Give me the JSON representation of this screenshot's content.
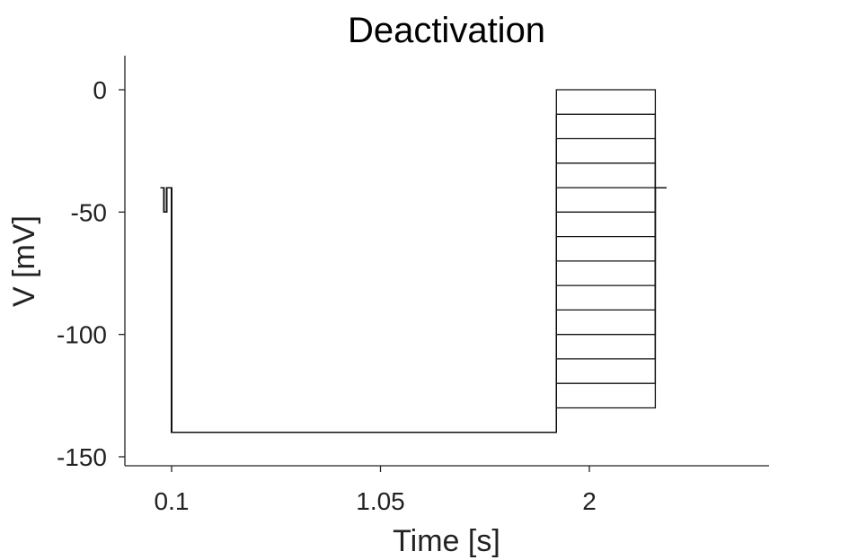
{
  "chart_data": {
    "type": "line",
    "title": "Deactivation",
    "xlabel": "Time [s]",
    "ylabel": "V [mV]",
    "xlim": [
      0.05,
      2.4
    ],
    "ylim": [
      -154,
      14
    ],
    "xticks": [
      0.1,
      1.05,
      2
    ],
    "xtick_labels": [
      "0.1",
      "1.05",
      "2"
    ],
    "yticks": [
      0,
      -50,
      -100,
      -150
    ],
    "ytick_labels": [
      "0",
      "-50",
      "-100",
      "-150"
    ],
    "grid": false,
    "legend": "none",
    "protocol": {
      "holding_potential": -40,
      "test_pulse_potential": -50,
      "test_pulse_time": [
        0.065,
        0.078
      ],
      "hyperpolarization_start": 0.1,
      "hyperpolarization_potential": -140,
      "step_start": 1.85,
      "step_end": 2.3,
      "return_end": 2.35,
      "step_potentials": [
        0,
        -10,
        -20,
        -30,
        -40,
        -50,
        -60,
        -70,
        -80,
        -90,
        -100,
        -110,
        -120,
        -130
      ]
    }
  }
}
